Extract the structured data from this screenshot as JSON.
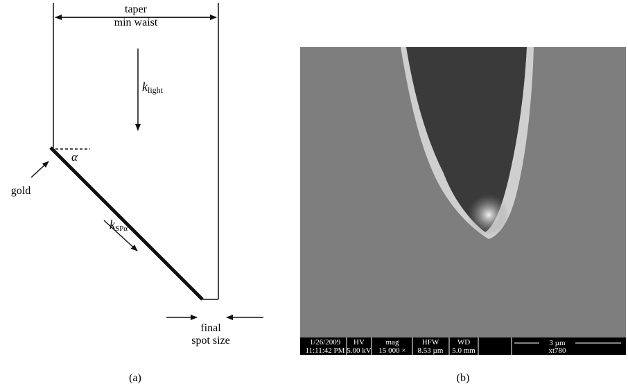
{
  "panel_a": {
    "taper_line1": "taper",
    "taper_line2": "min waist",
    "k_light_symbol": "k",
    "k_light_sub": "light",
    "angle": "α",
    "gold": "gold",
    "k_sp_symbol": "k",
    "k_sp_sub": "SPα",
    "final_line1": "final",
    "final_line2": "spot size",
    "caption": "(a)"
  },
  "panel_b": {
    "date": "1/26/2009",
    "time": "11:11:42 PM",
    "hv_label": "HV",
    "hv_value": "5.00 kV",
    "mag_label": "mag",
    "mag_value": "15 000 ×",
    "hfw_label": "HFW",
    "hfw_value": "8.53 µm",
    "wd_label": "WD",
    "wd_value": "5.0 mm",
    "scale": "3 µm",
    "instrument": "xt780",
    "caption": "(b)"
  }
}
